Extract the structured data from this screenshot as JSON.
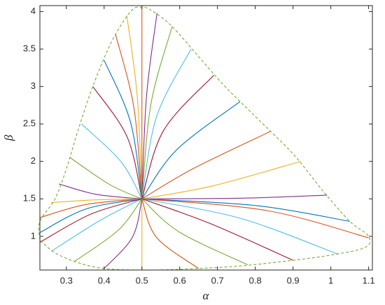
{
  "chart_data": {
    "type": "line",
    "x_label": "α",
    "y_label": "β",
    "xlim": [
      0.23,
      1.11
    ],
    "ylim": [
      0.55,
      4.08
    ],
    "xticks": [
      0.3,
      0.4,
      0.5,
      0.6,
      0.7,
      0.8,
      0.9,
      1,
      1.1
    ],
    "yticks": [
      1,
      1.5,
      2,
      2.5,
      3,
      3.5,
      4
    ],
    "grid": false,
    "boundary": {
      "color": "#77AC30",
      "dashed": true,
      "x": [
        0.23,
        0.23,
        0.27,
        0.3,
        0.33,
        0.37,
        0.42,
        0.47,
        0.5,
        0.53,
        0.58,
        0.65,
        0.72,
        0.8,
        0.9,
        0.98,
        1.05,
        1.1,
        1.09,
        1.0,
        0.9,
        0.75,
        0.6,
        0.5,
        0.4,
        0.33,
        0.27,
        0.23
      ],
      "y": [
        0.95,
        1.2,
        1.5,
        1.9,
        2.4,
        3.0,
        3.6,
        4.0,
        4.06,
        4.0,
        3.8,
        3.4,
        3.0,
        2.6,
        2.1,
        1.6,
        1.2,
        1.0,
        0.85,
        0.75,
        0.68,
        0.6,
        0.56,
        0.55,
        0.57,
        0.65,
        0.78,
        0.95
      ]
    },
    "series": [
      {
        "color": "#0072BD",
        "x": [
          0.5,
          0.352,
          0.23
        ],
        "y": [
          1.5,
          1.365,
          1.05
        ]
      },
      {
        "color": "#D95319",
        "x": [
          0.5,
          0.352,
          0.23
        ],
        "y": [
          1.5,
          1.425,
          1.25
        ]
      },
      {
        "color": "#EDB120",
        "x": [
          0.5,
          0.368,
          0.26
        ],
        "y": [
          1.5,
          1.485,
          1.45
        ]
      },
      {
        "color": "#7E2F8E",
        "x": [
          0.5,
          0.379,
          0.28
        ],
        "y": [
          1.5,
          1.56,
          1.7
        ]
      },
      {
        "color": "#77AC30",
        "x": [
          0.5,
          0.415,
          0.31
        ],
        "y": [
          1.5,
          1.69,
          2.05
        ]
      },
      {
        "color": "#4DBEEE",
        "x": [
          0.5,
          0.444,
          0.34
        ],
        "y": [
          1.5,
          2.0,
          2.5
        ]
      },
      {
        "color": "#A2142F",
        "x": [
          0.5,
          0.461,
          0.37
        ],
        "y": [
          1.5,
          2.325,
          3.0
        ]
      },
      {
        "color": "#0072BD",
        "x": [
          0.5,
          0.47,
          0.4
        ],
        "y": [
          1.5,
          2.52,
          3.35
        ]
      },
      {
        "color": "#D95319",
        "x": [
          0.5,
          0.479,
          0.43
        ],
        "y": [
          1.5,
          2.71,
          3.7
        ]
      },
      {
        "color": "#EDB120",
        "x": [
          0.5,
          0.488,
          0.46
        ],
        "y": [
          1.5,
          2.85,
          3.95
        ]
      },
      {
        "color": "#D95319",
        "x": [
          0.5,
          0.5,
          0.5
        ],
        "y": [
          1.5,
          2.9,
          4.06
        ]
      },
      {
        "color": "#7E2F8E",
        "x": [
          0.5,
          0.512,
          0.54
        ],
        "y": [
          1.5,
          2.86,
          3.98
        ]
      },
      {
        "color": "#77AC30",
        "x": [
          0.5,
          0.524,
          0.58
        ],
        "y": [
          1.5,
          2.77,
          3.8
        ]
      },
      {
        "color": "#4DBEEE",
        "x": [
          0.5,
          0.539,
          0.63
        ],
        "y": [
          1.5,
          2.6,
          3.5
        ]
      },
      {
        "color": "#A2142F",
        "x": [
          0.5,
          0.557,
          0.69
        ],
        "y": [
          1.5,
          2.41,
          3.15
        ]
      },
      {
        "color": "#0072BD",
        "x": [
          0.5,
          0.591,
          0.76
        ],
        "y": [
          1.5,
          2.15,
          2.8
        ]
      },
      {
        "color": "#D95319",
        "x": [
          0.5,
          0.636,
          0.84
        ],
        "y": [
          1.5,
          1.905,
          2.4
        ]
      },
      {
        "color": "#EDB120",
        "x": [
          0.5,
          0.689,
          0.92
        ],
        "y": [
          1.5,
          1.675,
          2.0
        ]
      },
      {
        "color": "#7E2F8E",
        "x": [
          0.5,
          0.77,
          0.99
        ],
        "y": [
          1.5,
          1.51,
          1.55
        ]
      },
      {
        "color": "#0072BD",
        "x": [
          0.5,
          0.803,
          1.05
        ],
        "y": [
          1.5,
          1.41,
          1.2
        ]
      },
      {
        "color": "#D95319",
        "x": [
          0.5,
          0.83,
          1.1
        ],
        "y": [
          1.5,
          1.344,
          0.98
        ]
      },
      {
        "color": "#4DBEEE",
        "x": [
          0.5,
          0.76,
          1.02
        ],
        "y": [
          1.5,
          1.241,
          0.76
        ]
      },
      {
        "color": "#A2142F",
        "x": [
          0.5,
          0.68,
          0.9
        ],
        "y": [
          1.5,
          1.172,
          0.68
        ]
      },
      {
        "color": "#77AC30",
        "x": [
          0.5,
          0.598,
          0.78
        ],
        "y": [
          1.5,
          1.06,
          0.62
        ]
      },
      {
        "color": "#D95319",
        "x": [
          0.5,
          0.538,
          0.65
        ],
        "y": [
          1.5,
          0.989,
          0.57
        ]
      },
      {
        "color": "#EDB120",
        "x": [
          0.5,
          0.5,
          0.5
        ],
        "y": [
          1.5,
          1.0,
          0.55
        ]
      },
      {
        "color": "#7E2F8E",
        "x": [
          0.5,
          0.475,
          0.4
        ],
        "y": [
          1.5,
          0.989,
          0.57
        ]
      },
      {
        "color": "#77AC30",
        "x": [
          0.5,
          0.437,
          0.32
        ],
        "y": [
          1.5,
          1.08,
          0.66
        ]
      },
      {
        "color": "#4DBEEE",
        "x": [
          0.5,
          0.392,
          0.26
        ],
        "y": [
          1.5,
          1.22,
          0.8
        ]
      },
      {
        "color": "#A2142F",
        "x": [
          0.5,
          0.365,
          0.23
        ],
        "y": [
          1.5,
          1.297,
          0.92
        ]
      }
    ]
  }
}
